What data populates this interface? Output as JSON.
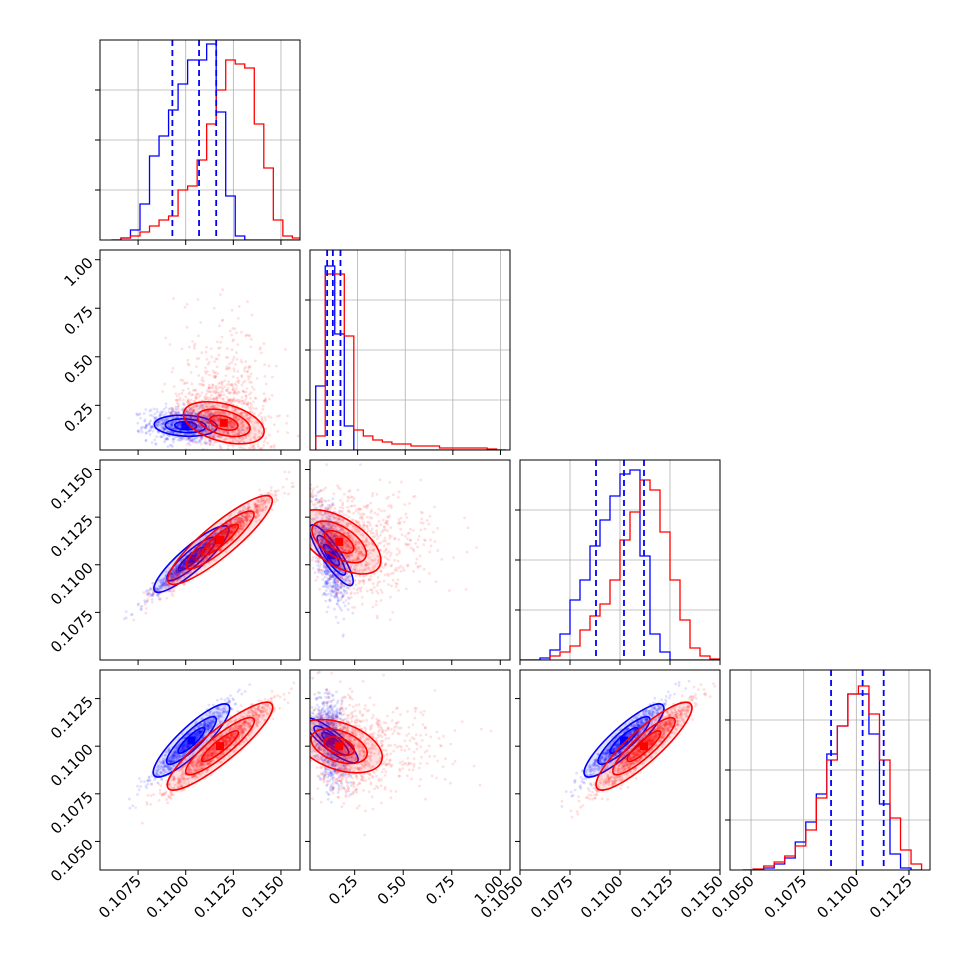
{
  "figure": {
    "type": "corner_plot",
    "colors": {
      "series_a": "#0000ff",
      "series_b": "#ff0000",
      "grid": "#b0b0b0",
      "axes": "#000000"
    }
  },
  "chart_data": [
    {
      "panel": "p1_histogram",
      "type": "histogram",
      "xlim": [
        0.1055,
        0.116
      ],
      "ylim": [
        0,
        1
      ],
      "grid": true,
      "xticks": [
        0.1075,
        0.11,
        0.1125,
        0.115
      ],
      "yticks": [
        0.25,
        0.5,
        0.75
      ],
      "bin_edges": [
        0.1061,
        0.1066,
        0.1071,
        0.1076,
        0.1081,
        0.1086,
        0.1091,
        0.1096,
        0.1101,
        0.1106,
        0.1111,
        0.1116,
        0.1121,
        0.1126,
        0.1131,
        0.1136,
        0.1141,
        0.1146,
        0.1151,
        0.1156,
        0.1161
      ],
      "series": [
        {
          "color": "#0000ff",
          "values": [
            0,
            0.01,
            0.05,
            0.18,
            0.42,
            0.52,
            0.65,
            0.78,
            0.9,
            0.9,
            0.98,
            0.64,
            0.22,
            0.02,
            0,
            0,
            0,
            0,
            0,
            0
          ]
        },
        {
          "color": "#ff0000",
          "values": [
            0,
            0.01,
            0.02,
            0.04,
            0.07,
            0.1,
            0.12,
            0.25,
            0.27,
            0.4,
            0.58,
            0.75,
            0.9,
            0.88,
            0.86,
            0.58,
            0.36,
            0.1,
            0.02,
            0.01
          ]
        }
      ],
      "quantile_lines": [
        0.1093,
        0.1107,
        0.1116
      ]
    },
    {
      "panel": "p2_histogram",
      "type": "histogram",
      "xlim": [
        0.0,
        1.05
      ],
      "ylim": [
        0,
        1
      ],
      "grid": true,
      "xticks": [
        0.25,
        0.5,
        0.75,
        1.0
      ],
      "yticks": [
        0.25,
        0.5,
        0.75
      ],
      "bin_edges": [
        0.03,
        0.08,
        0.13,
        0.18,
        0.23,
        0.28,
        0.33,
        0.38,
        0.43,
        0.48,
        0.53,
        0.58,
        0.63,
        0.68,
        0.73,
        0.78,
        0.83,
        0.88,
        0.93,
        0.98,
        1.03
      ],
      "series": [
        {
          "color": "#0000ff",
          "values": [
            0.32,
            0.92,
            0.58,
            0.12,
            0,
            0,
            0,
            0,
            0,
            0,
            0,
            0,
            0,
            0,
            0,
            0,
            0,
            0,
            0,
            0
          ]
        },
        {
          "color": "#ff0000",
          "values": [
            0.07,
            0.88,
            0.88,
            0.57,
            0.1,
            0.07,
            0.05,
            0.04,
            0.03,
            0.03,
            0.02,
            0.02,
            0.02,
            0.01,
            0.01,
            0.01,
            0.01,
            0.01,
            0.005,
            0
          ]
        }
      ],
      "quantile_lines": [
        0.09,
        0.12,
        0.16
      ]
    },
    {
      "panel": "p3_histogram",
      "type": "histogram",
      "xlim": [
        0.105,
        0.115
      ],
      "ylim": [
        0,
        1
      ],
      "grid": true,
      "xticks": [
        0.105,
        0.1075,
        0.11,
        0.1125,
        0.115
      ],
      "yticks": [
        0.25,
        0.5,
        0.75
      ],
      "bin_edges": [
        0.105,
        0.1055,
        0.106,
        0.1065,
        0.107,
        0.1075,
        0.108,
        0.1085,
        0.109,
        0.1095,
        0.11,
        0.1105,
        0.111,
        0.1115,
        0.112,
        0.1125,
        0.113,
        0.1135,
        0.114,
        0.1145,
        0.115
      ],
      "series": [
        {
          "color": "#0000ff",
          "values": [
            0,
            0,
            0.01,
            0.05,
            0.13,
            0.3,
            0.4,
            0.57,
            0.7,
            0.82,
            0.93,
            0.95,
            0.52,
            0.13,
            0.04,
            0,
            0,
            0,
            0,
            0
          ]
        },
        {
          "color": "#ff0000",
          "values": [
            0,
            0,
            0,
            0.02,
            0.04,
            0.07,
            0.15,
            0.22,
            0.28,
            0.4,
            0.6,
            0.74,
            0.9,
            0.85,
            0.64,
            0.4,
            0.2,
            0.06,
            0.02,
            0.005
          ]
        }
      ],
      "quantile_lines": [
        0.1088,
        0.1102,
        0.1112
      ]
    },
    {
      "panel": "p4_histogram",
      "type": "histogram",
      "xlim": [
        0.104,
        0.1135
      ],
      "ylim": [
        0,
        1
      ],
      "grid": true,
      "xticks": [
        0.105,
        0.1075,
        0.11,
        0.1125
      ],
      "yticks": [
        0.25,
        0.5,
        0.75
      ],
      "bin_edges": [
        0.1046,
        0.1051,
        0.1056,
        0.1061,
        0.1066,
        0.1071,
        0.1076,
        0.1081,
        0.1086,
        0.1091,
        0.1096,
        0.1101,
        0.1106,
        0.1111,
        0.1116,
        0.1121,
        0.1126,
        0.1131
      ],
      "series": [
        {
          "color": "#0000ff",
          "values": [
            0,
            0,
            0.01,
            0.03,
            0.06,
            0.14,
            0.24,
            0.38,
            0.58,
            0.72,
            0.88,
            0.88,
            0.68,
            0.33,
            0.08,
            0.01,
            0
          ]
        },
        {
          "color": "#ff0000",
          "values": [
            0,
            0.005,
            0.02,
            0.04,
            0.07,
            0.12,
            0.2,
            0.36,
            0.55,
            0.72,
            0.88,
            0.92,
            0.78,
            0.55,
            0.26,
            0.1,
            0.03
          ]
        }
      ],
      "quantile_lines": [
        0.1088,
        0.1103,
        0.1113
      ]
    },
    {
      "panel": "p2_vs_p1",
      "type": "scatter",
      "xlim": [
        0.1055,
        0.116
      ],
      "ylim": [
        0.02,
        1.05
      ],
      "grid": false,
      "xticks": [
        0.1075,
        0.11,
        0.1125,
        0.115
      ],
      "yticks": [
        0.25,
        0.5,
        0.75,
        1.0
      ],
      "ytick_labels": [
        "0.25",
        "0.50",
        "0.75",
        "1.00"
      ],
      "series": [
        {
          "color": "#0000ff",
          "center": [
            0.11,
            0.145
          ],
          "spread": [
            0.001,
            0.045
          ],
          "corr": -0.1
        },
        {
          "color": "#ff0000",
          "center": [
            0.112,
            0.16
          ],
          "spread": [
            0.0012,
            0.08
          ],
          "corr": -0.4
        }
      ]
    },
    {
      "panel": "p3_vs_p1",
      "type": "scatter",
      "xlim": [
        0.1055,
        0.116
      ],
      "ylim": [
        0.105,
        0.1155
      ],
      "grid": false,
      "xticks": [
        0.1075,
        0.11,
        0.1125,
        0.115
      ],
      "yticks": [
        0.1075,
        0.11,
        0.1125,
        0.115
      ],
      "ytick_labels": [
        "0.1075",
        "0.1100",
        "0.1125",
        "0.1150"
      ],
      "series": [
        {
          "color": "#0000ff",
          "center": [
            0.1103,
            0.1103
          ],
          "spread": [
            0.001,
            0.0009
          ],
          "corr": 0.97
        },
        {
          "color": "#ff0000",
          "center": [
            0.1118,
            0.1113
          ],
          "spread": [
            0.0014,
            0.0012
          ],
          "corr": 0.97
        }
      ]
    },
    {
      "panel": "p3_vs_p2",
      "type": "scatter",
      "xlim": [
        0.02,
        1.05
      ],
      "ylim": [
        0.105,
        0.1155
      ],
      "grid": false,
      "xticks": [
        0.25,
        0.5,
        0.75,
        1.0
      ],
      "yticks": [
        0.1075,
        0.11,
        0.1125,
        0.115
      ],
      "series": [
        {
          "color": "#0000ff",
          "center": [
            0.13,
            0.1105
          ],
          "spread": [
            0.04,
            0.0012
          ],
          "corr": -0.5
        },
        {
          "color": "#ff0000",
          "center": [
            0.17,
            0.1112
          ],
          "spread": [
            0.1,
            0.0013
          ],
          "corr": -0.5
        }
      ]
    },
    {
      "panel": "p4_vs_p1",
      "type": "scatter",
      "xlim": [
        0.1055,
        0.116
      ],
      "ylim": [
        0.1035,
        0.114
      ],
      "grid": false,
      "xticks": [
        0.1075,
        0.11,
        0.1125,
        0.115
      ],
      "yticks": [
        0.105,
        0.1075,
        0.11,
        0.1125
      ],
      "xtick_labels": [
        "0.1075",
        "0.1100",
        "0.1125",
        "0.1150"
      ],
      "ytick_labels": [
        "0.1050",
        "0.1075",
        "0.1100",
        "0.1125"
      ],
      "series": [
        {
          "color": "#0000ff",
          "center": [
            0.1103,
            0.1103
          ],
          "spread": [
            0.001,
            0.001
          ],
          "corr": 0.95
        },
        {
          "color": "#ff0000",
          "center": [
            0.1118,
            0.11
          ],
          "spread": [
            0.0014,
            0.0012
          ],
          "corr": 0.95
        }
      ]
    },
    {
      "panel": "p4_vs_p2",
      "type": "scatter",
      "xlim": [
        0.02,
        1.05
      ],
      "ylim": [
        0.1035,
        0.114
      ],
      "grid": false,
      "xticks": [
        0.25,
        0.5,
        0.75,
        1.0
      ],
      "yticks": [
        0.105,
        0.1075,
        0.11,
        0.1125
      ],
      "xtick_labels": [
        "0.25",
        "0.50",
        "0.75",
        "1.00"
      ],
      "series": [
        {
          "color": "#0000ff",
          "center": [
            0.13,
            0.1103
          ],
          "spread": [
            0.04,
            0.0011
          ],
          "corr": -0.3
        },
        {
          "color": "#ff0000",
          "center": [
            0.17,
            0.11
          ],
          "spread": [
            0.1,
            0.0012
          ],
          "corr": -0.3
        }
      ]
    },
    {
      "panel": "p4_vs_p3",
      "type": "scatter",
      "xlim": [
        0.105,
        0.115
      ],
      "ylim": [
        0.1035,
        0.114
      ],
      "grid": false,
      "xticks": [
        0.105,
        0.1075,
        0.11,
        0.1125,
        0.115
      ],
      "yticks": [
        0.105,
        0.1075,
        0.11,
        0.1125
      ],
      "xtick_labels": [
        "0.1050",
        "0.1075",
        "0.1100",
        "0.1125",
        "0.1150"
      ],
      "series": [
        {
          "color": "#0000ff",
          "center": [
            0.1102,
            0.1103
          ],
          "spread": [
            0.001,
            0.001
          ],
          "corr": 0.95
        },
        {
          "color": "#ff0000",
          "center": [
            0.1112,
            0.11
          ],
          "spread": [
            0.0012,
            0.0012
          ],
          "corr": 0.95
        }
      ]
    },
    {
      "panel": "p4_bottom_axis",
      "type": "axis",
      "xtick_labels": [
        "0.1050",
        "0.1075",
        "0.1100",
        "0.1125"
      ]
    }
  ]
}
